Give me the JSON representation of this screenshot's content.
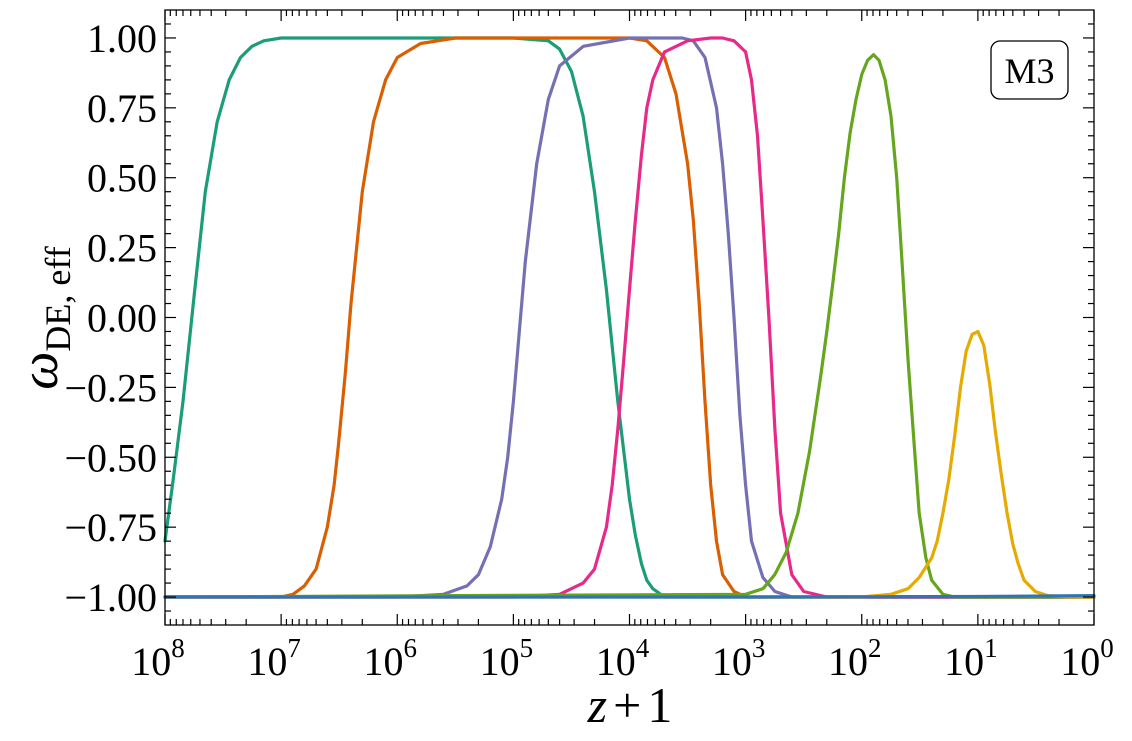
{
  "chart_data": {
    "type": "line",
    "xscale": "log",
    "xaxis_reversed": true,
    "xlim": [
      100000000,
      1
    ],
    "ylim": [
      -1.1,
      1.1
    ],
    "x_ticks": [
      {
        "base": "10",
        "exp": "8",
        "value": 100000000
      },
      {
        "base": "10",
        "exp": "7",
        "value": 10000000
      },
      {
        "base": "10",
        "exp": "6",
        "value": 1000000
      },
      {
        "base": "10",
        "exp": "5",
        "value": 100000
      },
      {
        "base": "10",
        "exp": "4",
        "value": 10000
      },
      {
        "base": "10",
        "exp": "3",
        "value": 1000
      },
      {
        "base": "10",
        "exp": "2",
        "value": 100
      },
      {
        "base": "10",
        "exp": "1",
        "value": 10
      },
      {
        "base": "10",
        "exp": "0",
        "value": 1
      }
    ],
    "y_ticks": [
      {
        "label": "1.00",
        "value": 1.0
      },
      {
        "label": "0.75",
        "value": 0.75
      },
      {
        "label": "0.50",
        "value": 0.5
      },
      {
        "label": "0.25",
        "value": 0.25
      },
      {
        "label": "0.00",
        "value": 0.0
      },
      {
        "label": "−0.25",
        "value": -0.25
      },
      {
        "label": "−0.50",
        "value": -0.5
      },
      {
        "label": "−0.75",
        "value": -0.75
      },
      {
        "label": "−1.00",
        "value": -1.0
      }
    ],
    "xlabel": "z + 1",
    "ylabel_symbol": "ω",
    "ylabel_subscript": "DE, eff",
    "legend_text": "M3",
    "legend_position": "top-right",
    "grid": false,
    "series": [
      {
        "color": "#1b9e77",
        "x": [
          100000000,
          85000000,
          70000000,
          56000000,
          45000000,
          35500000,
          28000000,
          22400000,
          17800000,
          14100000,
          10000000,
          5600000,
          1000000,
          100000,
          50000,
          40000,
          31600,
          25100,
          20000,
          15800,
          12600,
          10000,
          8900,
          7900,
          7100,
          6300,
          5000,
          3160,
          1000,
          100,
          1
        ],
        "y": [
          -0.8,
          -0.58,
          -0.3,
          0.08,
          0.45,
          0.7,
          0.85,
          0.93,
          0.97,
          0.99,
          1.0,
          1.0,
          1.0,
          1.0,
          0.99,
          0.96,
          0.88,
          0.72,
          0.45,
          0.1,
          -0.3,
          -0.65,
          -0.78,
          -0.88,
          -0.94,
          -0.97,
          -1.0,
          -1.0,
          -1.0,
          -1.0,
          -1.0
        ]
      },
      {
        "color": "#d95f02",
        "x": [
          100000000,
          10000000,
          7900000,
          6300000,
          5000000,
          4000000,
          3500000,
          3200000,
          2800000,
          2500000,
          2000000,
          1600000,
          1260000,
          1000000,
          630000,
          316000,
          10000,
          7100,
          5000,
          3980,
          3160,
          2820,
          2510,
          2240,
          2000,
          1780,
          1580,
          1260,
          1000,
          100,
          1
        ],
        "y": [
          -1.0,
          -1.0,
          -0.99,
          -0.96,
          -0.9,
          -0.75,
          -0.6,
          -0.45,
          -0.2,
          0.05,
          0.45,
          0.7,
          0.85,
          0.93,
          0.98,
          1.0,
          1.0,
          0.99,
          0.93,
          0.8,
          0.55,
          0.35,
          0.05,
          -0.3,
          -0.6,
          -0.8,
          -0.92,
          -0.98,
          -1.0,
          -1.0,
          -1.0
        ]
      },
      {
        "color": "#7570b3",
        "x": [
          100000000,
          1000000,
          400000,
          251000,
          200000,
          158000,
          126000,
          112000,
          100000,
          89000,
          79000,
          63000,
          50000,
          40000,
          25000,
          10000,
          3500,
          2820,
          2240,
          1780,
          1580,
          1410,
          1260,
          1120,
          1000,
          890,
          710,
          560,
          400,
          100,
          1
        ],
        "y": [
          -1.0,
          -1.0,
          -0.99,
          -0.96,
          -0.92,
          -0.82,
          -0.65,
          -0.5,
          -0.3,
          -0.05,
          0.2,
          0.55,
          0.78,
          0.9,
          0.97,
          1.0,
          1.0,
          0.99,
          0.93,
          0.75,
          0.55,
          0.3,
          0.0,
          -0.35,
          -0.6,
          -0.8,
          -0.93,
          -0.98,
          -1.0,
          -1.0,
          -1.0
        ]
      },
      {
        "color": "#e7298a",
        "x": [
          100000000,
          100000,
          40000,
          25100,
          20000,
          15800,
          14100,
          12600,
          11200,
          10000,
          8900,
          7900,
          7100,
          6300,
          5000,
          3160,
          2000,
          1580,
          1260,
          1000,
          890,
          790,
          710,
          630,
          560,
          500,
          400,
          316,
          200,
          100,
          1
        ],
        "y": [
          -1.0,
          -1.0,
          -0.99,
          -0.95,
          -0.9,
          -0.75,
          -0.6,
          -0.4,
          -0.15,
          0.1,
          0.35,
          0.58,
          0.75,
          0.85,
          0.95,
          0.99,
          1.0,
          1.0,
          0.99,
          0.95,
          0.85,
          0.65,
          0.35,
          0.0,
          -0.4,
          -0.7,
          -0.92,
          -0.98,
          -1.0,
          -1.0,
          -1.0
        ]
      },
      {
        "color": "#66a61e",
        "x": [
          100000000,
          1000,
          708,
          562,
          447,
          355,
          282,
          224,
          200,
          178,
          158,
          141,
          126,
          112,
          100,
          89,
          79,
          71,
          63,
          56,
          50,
          45,
          40,
          35,
          32,
          28,
          25,
          20,
          15.8,
          10,
          1
        ],
        "y": [
          -1.0,
          -0.99,
          -0.97,
          -0.92,
          -0.84,
          -0.7,
          -0.48,
          -0.2,
          -0.05,
          0.12,
          0.3,
          0.5,
          0.66,
          0.78,
          0.87,
          0.92,
          0.94,
          0.92,
          0.85,
          0.72,
          0.5,
          0.2,
          -0.15,
          -0.48,
          -0.7,
          -0.86,
          -0.94,
          -0.99,
          -1.0,
          -1.0,
          -1.0
        ]
      },
      {
        "color": "#e6ab02",
        "x": [
          100000000,
          100,
          56,
          40,
          32,
          25,
          22.4,
          20,
          17.8,
          15.8,
          14.1,
          12.6,
          11.2,
          10,
          8.9,
          7.9,
          7.1,
          6.3,
          5.6,
          5,
          4.5,
          4,
          3.2,
          2.5,
          1.6,
          1
        ],
        "y": [
          -1.0,
          -1.0,
          -0.99,
          -0.97,
          -0.93,
          -0.86,
          -0.8,
          -0.7,
          -0.58,
          -0.42,
          -0.25,
          -0.12,
          -0.06,
          -0.05,
          -0.1,
          -0.24,
          -0.4,
          -0.56,
          -0.7,
          -0.81,
          -0.88,
          -0.94,
          -0.98,
          -0.995,
          -1.0,
          -1.0
        ]
      },
      {
        "color": "#2f75b5",
        "x": [
          100000000,
          10000000,
          1000000,
          100000,
          10000,
          1000,
          100,
          10,
          1
        ],
        "y": [
          -1.0,
          -1.0,
          -1.0,
          -1.0,
          -1.0,
          -1.0,
          -0.999,
          -0.998,
          -0.995
        ]
      }
    ]
  }
}
